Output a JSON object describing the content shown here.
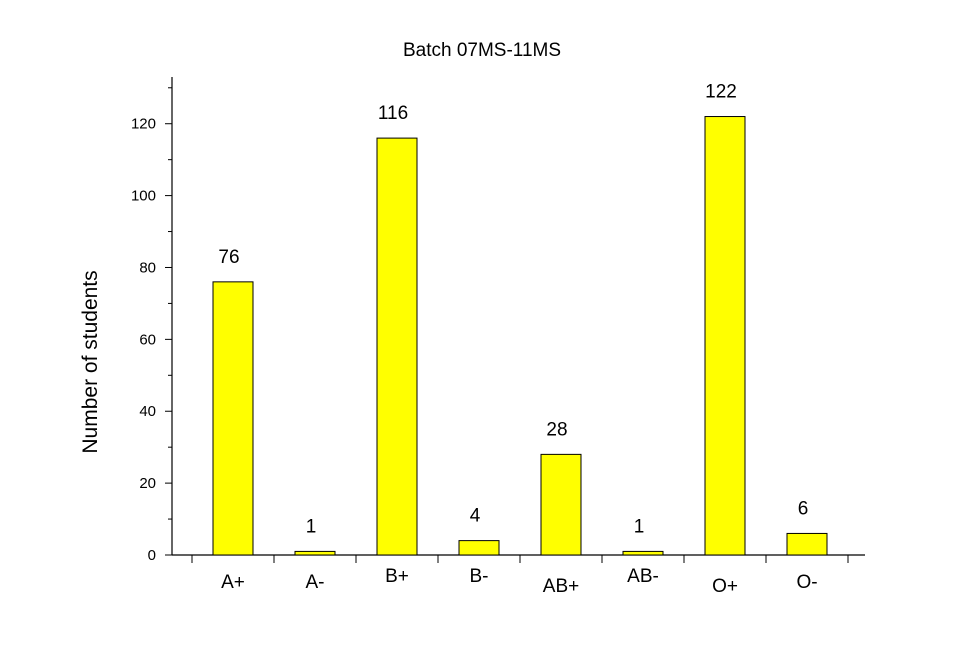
{
  "chart_data": {
    "type": "bar",
    "title": "Batch 07MS-11MS",
    "xlabel": "",
    "ylabel": "Number of students",
    "categories": [
      "A+",
      "A-",
      "B+",
      "B-",
      "AB+",
      "AB-",
      "O+",
      "O-"
    ],
    "values": [
      76,
      1,
      116,
      4,
      28,
      1,
      122,
      6
    ],
    "data_labels": [
      "76",
      "1",
      "116",
      "4",
      "28",
      "1",
      "122",
      "6"
    ],
    "ylim": [
      0,
      133
    ],
    "yticks": [
      0,
      20,
      40,
      60,
      80,
      100,
      120
    ],
    "ytick_labels": [
      "0",
      "20",
      "40",
      "60",
      "80",
      "100",
      "120"
    ],
    "bar_color": "#ffff00",
    "grid": false,
    "legend": "none"
  }
}
